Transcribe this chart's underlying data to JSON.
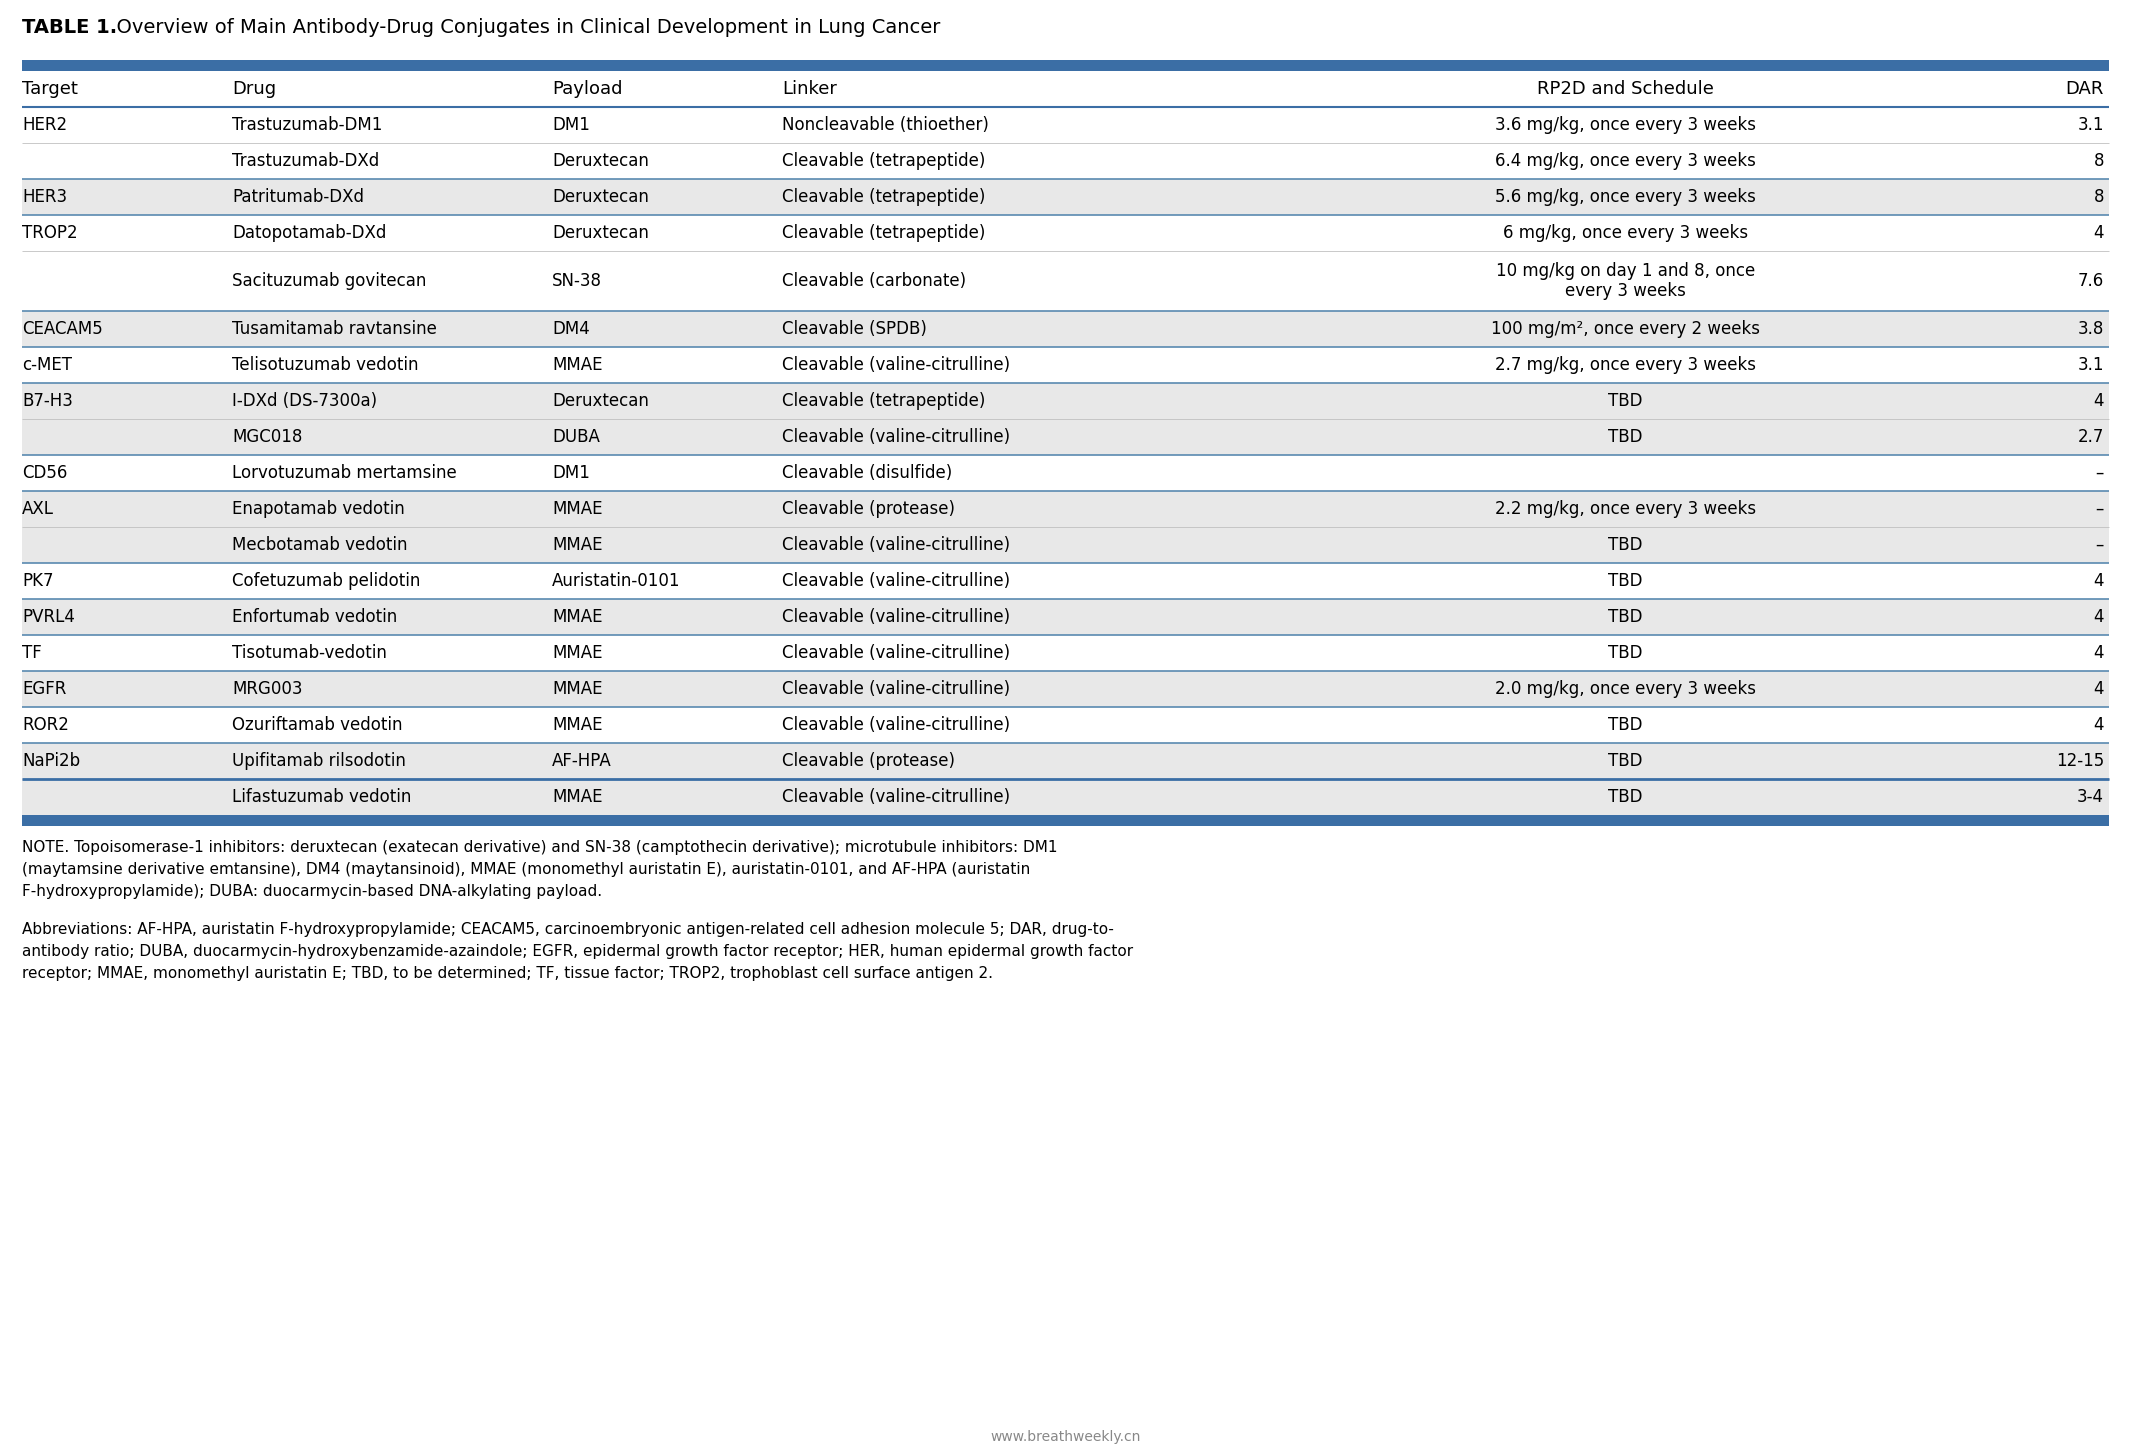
{
  "title_bold": "TABLE 1.",
  "title_rest": "  Overview of Main Antibody-Drug Conjugates in Clinical Development in Lung Cancer",
  "header_bg": "#3b6ea5",
  "row_alt_color": "#e8e8e8",
  "row_white_color": "#ffffff",
  "text_color": "#000000",
  "footer_bg": "#3b6ea5",
  "columns": [
    "Target",
    "Drug",
    "Payload",
    "Linker",
    "RP2D and Schedule",
    "DAR"
  ],
  "rows": [
    {
      "target": "HER2",
      "drug": "Trastuzumab-DM1",
      "payload": "DM1",
      "linker": "Noncleavable (thioether)",
      "rp2d": "3.6 mg/kg, once every 3 weeks",
      "dar": "3.1",
      "shade": false,
      "target_show": true,
      "group_start": true
    },
    {
      "target": "HER2",
      "drug": "Trastuzumab-DXd",
      "payload": "Deruxtecan",
      "linker": "Cleavable (tetrapeptide)",
      "rp2d": "6.4 mg/kg, once every 3 weeks",
      "dar": "8",
      "shade": false,
      "target_show": false,
      "group_start": false
    },
    {
      "target": "HER3",
      "drug": "Patritumab-DXd",
      "payload": "Deruxtecan",
      "linker": "Cleavable (tetrapeptide)",
      "rp2d": "5.6 mg/kg, once every 3 weeks",
      "dar": "8",
      "shade": true,
      "target_show": true,
      "group_start": true
    },
    {
      "target": "TROP2",
      "drug": "Datopotamab-DXd",
      "payload": "Deruxtecan",
      "linker": "Cleavable (tetrapeptide)",
      "rp2d": "6 mg/kg, once every 3 weeks",
      "dar": "4",
      "shade": false,
      "target_show": true,
      "group_start": true
    },
    {
      "target": "TROP2",
      "drug": "Sacituzumab govitecan",
      "payload": "SN-38",
      "linker": "Cleavable (carbonate)",
      "rp2d": "10 mg/kg on day 1 and 8, once\nevery 3 weeks",
      "dar": "7.6",
      "shade": false,
      "target_show": false,
      "group_start": false
    },
    {
      "target": "CEACAM5",
      "drug": "Tusamitamab ravtansine",
      "payload": "DM4",
      "linker": "Cleavable (SPDB)",
      "rp2d": "100 mg/m², once every 2 weeks",
      "dar": "3.8",
      "shade": true,
      "target_show": true,
      "group_start": true
    },
    {
      "target": "c-MET",
      "drug": "Telisotuzumab vedotin",
      "payload": "MMAE",
      "linker": "Cleavable (valine-citrulline)",
      "rp2d": "2.7 mg/kg, once every 3 weeks",
      "dar": "3.1",
      "shade": false,
      "target_show": true,
      "group_start": true
    },
    {
      "target": "B7-H3",
      "drug": "I-DXd (DS-7300a)",
      "payload": "Deruxtecan",
      "linker": "Cleavable (tetrapeptide)",
      "rp2d": "TBD",
      "dar": "4",
      "shade": true,
      "target_show": true,
      "group_start": true
    },
    {
      "target": "B7-H3",
      "drug": "MGC018",
      "payload": "DUBA",
      "linker": "Cleavable (valine-citrulline)",
      "rp2d": "TBD",
      "dar": "2.7",
      "shade": true,
      "target_show": false,
      "group_start": false
    },
    {
      "target": "CD56",
      "drug": "Lorvotuzumab mertamsine",
      "payload": "DM1",
      "linker": "Cleavable (disulfide)",
      "rp2d": "",
      "dar": "–",
      "shade": false,
      "target_show": true,
      "group_start": true
    },
    {
      "target": "AXL",
      "drug": "Enapotamab vedotin",
      "payload": "MMAE",
      "linker": "Cleavable (protease)",
      "rp2d": "2.2 mg/kg, once every 3 weeks",
      "dar": "–",
      "shade": true,
      "target_show": true,
      "group_start": true
    },
    {
      "target": "AXL",
      "drug": "Mecbotamab vedotin",
      "payload": "MMAE",
      "linker": "Cleavable (valine-citrulline)",
      "rp2d": "TBD",
      "dar": "–",
      "shade": true,
      "target_show": false,
      "group_start": false
    },
    {
      "target": "PK7",
      "drug": "Cofetuzumab pelidotin",
      "payload": "Auristatin-0101",
      "linker": "Cleavable (valine-citrulline)",
      "rp2d": "TBD",
      "dar": "4",
      "shade": false,
      "target_show": true,
      "group_start": true
    },
    {
      "target": "PVRL4",
      "drug": "Enfortumab vedotin",
      "payload": "MMAE",
      "linker": "Cleavable (valine-citrulline)",
      "rp2d": "TBD",
      "dar": "4",
      "shade": true,
      "target_show": true,
      "group_start": true
    },
    {
      "target": "TF",
      "drug": "Tisotumab-vedotin",
      "payload": "MMAE",
      "linker": "Cleavable (valine-citrulline)",
      "rp2d": "TBD",
      "dar": "4",
      "shade": false,
      "target_show": true,
      "group_start": true
    },
    {
      "target": "EGFR",
      "drug": "MRG003",
      "payload": "MMAE",
      "linker": "Cleavable (valine-citrulline)",
      "rp2d": "2.0 mg/kg, once every 3 weeks",
      "dar": "4",
      "shade": true,
      "target_show": true,
      "group_start": true
    },
    {
      "target": "ROR2",
      "drug": "Ozuriftamab vedotin",
      "payload": "MMAE",
      "linker": "Cleavable (valine-citrulline)",
      "rp2d": "TBD",
      "dar": "4",
      "shade": false,
      "target_show": true,
      "group_start": true
    },
    {
      "target": "NaPi2b",
      "drug": "Upifitamab rilsodotin",
      "payload": "AF-HPA",
      "linker": "Cleavable (protease)",
      "rp2d": "TBD",
      "dar": "12-15",
      "shade": true,
      "target_show": true,
      "group_start": true
    },
    {
      "target": "NaPi2b",
      "drug": "Lifastuzumab vedotin",
      "payload": "MMAE",
      "linker": "Cleavable (valine-citrulline)",
      "rp2d": "TBD",
      "dar": "3-4",
      "shade": true,
      "target_show": false,
      "group_start": false
    }
  ],
  "note_text": "NOTE. Topoisomerase-1 inhibitors: deruxtecan (exatecan derivative) and SN-38 (camptothecin derivative); microtubule inhibitors: DM1\n(maytamsine derivative emtansine), DM4 (maytansinoid), MMAE (monomethyl auristatin E), auristatin-0101, and AF-HPA (auristatin\nF-hydroxypropylamide); DUBA: duocarmycin-based DNA-alkylating payload.",
  "abbrev_text": "Abbreviations: AF-HPA, auristatin F-hydroxypropylamide; CEACAM5, carcinoembryonic antigen-related cell adhesion molecule 5; DAR, drug-to-\nantibody ratio; DUBA, duocarmycin-hydroxybenzamide-azaindole; EGFR, epidermal growth factor receptor; HER, human epidermal growth factor\nreceptor; MMAE, monomethyl auristatin E; TBD, to be determined; TF, tissue factor; TROP2, trophoblast cell surface antigen 2.",
  "watermark": "www.breathweekly.cn"
}
